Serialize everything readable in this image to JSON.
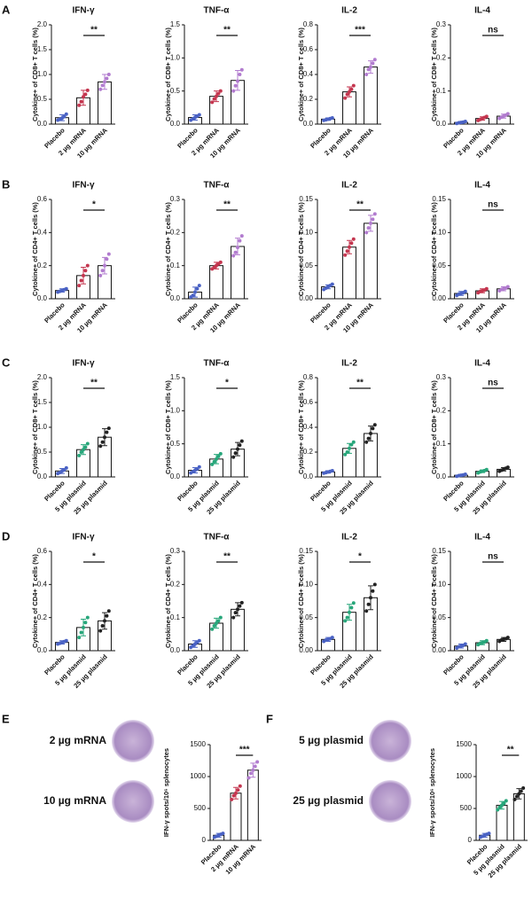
{
  "panel_labels": [
    "A",
    "B",
    "C",
    "D",
    "E",
    "F"
  ],
  "well_labels": [
    [
      "2 µg mRNA",
      "10 µg mRNA"
    ],
    [
      "5 µg plasmid",
      "25 µg plasmid"
    ]
  ],
  "chart_data": [
    {
      "type": "bar",
      "title": "IFN-γ",
      "y_label": "Cytokine+ of CD8+ T cells (%)",
      "categories": [
        "Placebo",
        "2 µg mRNA",
        "10 µg mRNA"
      ],
      "colors": [
        "#4a62c4",
        "#c4364f",
        "#b27ccf"
      ],
      "values": [
        0.13,
        0.53,
        0.85
      ],
      "errors": [
        0.06,
        0.15,
        0.15
      ],
      "points": [
        [
          0.08,
          0.1,
          0.12,
          0.15,
          0.2
        ],
        [
          0.38,
          0.45,
          0.55,
          0.6,
          0.68
        ],
        [
          0.7,
          0.78,
          0.85,
          0.92,
          1.0
        ]
      ],
      "ylim": [
        0,
        2
      ],
      "yticks": [
        {
          "value": 0,
          "label": "0.0"
        },
        0.5,
        {
          "value": 1,
          "label": "1.0"
        },
        1.5,
        {
          "value": 2,
          "label": "2.0"
        }
      ],
      "significance": "**"
    },
    {
      "type": "bar",
      "title": "TNF-α",
      "y_label": "Cytokine+ of CD8+ T cells (%)",
      "categories": [
        "Placebo",
        "2 µg mRNA",
        "10 µg mRNA"
      ],
      "colors": [
        "#4a62c4",
        "#c4364f",
        "#b27ccf"
      ],
      "values": [
        0.1,
        0.42,
        0.66
      ],
      "errors": [
        0.04,
        0.08,
        0.15
      ],
      "points": [
        [
          0.06,
          0.08,
          0.1,
          0.12,
          0.14
        ],
        [
          0.33,
          0.38,
          0.42,
          0.46,
          0.5
        ],
        [
          0.5,
          0.58,
          0.65,
          0.75,
          0.82
        ]
      ],
      "ylim": [
        0,
        1.5
      ],
      "yticks": [
        {
          "value": 0,
          "label": "0.0"
        },
        0.5,
        {
          "value": 1,
          "label": "1.0"
        },
        1.5
      ],
      "significance": "**"
    },
    {
      "type": "bar",
      "title": "IL-2",
      "y_label": "Cytokine+ of CD8+ T cells (%)",
      "categories": [
        "Placebo",
        "2 µg mRNA",
        "10 µg mRNA"
      ],
      "colors": [
        "#4a62c4",
        "#c4364f",
        "#b27ccf"
      ],
      "values": [
        0.04,
        0.26,
        0.46
      ],
      "errors": [
        0.01,
        0.04,
        0.05
      ],
      "points": [
        [
          0.03,
          0.035,
          0.04,
          0.045,
          0.05
        ],
        [
          0.21,
          0.24,
          0.26,
          0.28,
          0.31
        ],
        [
          0.4,
          0.44,
          0.46,
          0.49,
          0.52
        ]
      ],
      "ylim": [
        0,
        0.8
      ],
      "yticks": [
        {
          "value": 0,
          "label": "0.0"
        },
        0.2,
        0.4,
        0.6,
        0.8
      ],
      "significance": "***"
    },
    {
      "type": "bar",
      "title": "IL-4",
      "y_label": "Cytokine+ of CD8+ T cells (%)",
      "categories": [
        "Placebo",
        "2 µg mRNA",
        "10 µg mRNA"
      ],
      "colors": [
        "#4a62c4",
        "#c4364f",
        "#b27ccf"
      ],
      "values": [
        0.005,
        0.017,
        0.024
      ],
      "errors": [
        0.003,
        0.005,
        0.006
      ],
      "points": [
        [
          0.002,
          0.004,
          0.005,
          0.006,
          0.008
        ],
        [
          0.011,
          0.014,
          0.017,
          0.02,
          0.023
        ],
        [
          0.017,
          0.021,
          0.024,
          0.027,
          0.031
        ]
      ],
      "ylim": [
        0,
        0.3
      ],
      "yticks": [
        {
          "value": 0,
          "label": "0.0"
        },
        0.1,
        0.2,
        0.3
      ],
      "significance": "ns"
    },
    {
      "type": "bar",
      "title": "IFN-γ",
      "y_label": "Cytokine+ of CD4+ T cells (%)",
      "categories": [
        "Placebo",
        "2 µg mRNA",
        "10 µg mRNA"
      ],
      "colors": [
        "#4a62c4",
        "#c4364f",
        "#b27ccf"
      ],
      "values": [
        0.05,
        0.14,
        0.2
      ],
      "errors": [
        0.01,
        0.05,
        0.05
      ],
      "points": [
        [
          0.04,
          0.045,
          0.05,
          0.055,
          0.06
        ],
        [
          0.08,
          0.11,
          0.14,
          0.17,
          0.2
        ],
        [
          0.14,
          0.17,
          0.2,
          0.24,
          0.27
        ]
      ],
      "ylim": [
        0,
        0.6
      ],
      "yticks": [
        {
          "value": 0,
          "label": "0.0"
        },
        0.2,
        0.4,
        0.6
      ],
      "significance": "*"
    },
    {
      "type": "bar",
      "title": "TNF-α",
      "y_label": "Cytokine+ of CD4+ T cells (%)",
      "categories": [
        "Placebo",
        "2 µg mRNA",
        "10 µg mRNA"
      ],
      "colors": [
        "#4a62c4",
        "#c4364f",
        "#b27ccf"
      ],
      "values": [
        0.02,
        0.1,
        0.158
      ],
      "errors": [
        0.015,
        0.01,
        0.025
      ],
      "points": [
        [
          0.005,
          0.01,
          0.02,
          0.03,
          0.04
        ],
        [
          0.09,
          0.095,
          0.1,
          0.105,
          0.11
        ],
        [
          0.13,
          0.14,
          0.155,
          0.175,
          0.19
        ]
      ],
      "ylim": [
        0,
        0.3
      ],
      "yticks": [
        {
          "value": 0,
          "label": "0.0"
        },
        0.1,
        0.2,
        0.3
      ],
      "significance": "**"
    },
    {
      "type": "bar",
      "title": "IL-2",
      "y_label": "Cytokine+ of CD4+ T cells (%)",
      "categories": [
        "Placebo",
        "2 µg mRNA",
        "10 µg mRNA"
      ],
      "colors": [
        "#4a62c4",
        "#c4364f",
        "#b27ccf"
      ],
      "values": [
        0.018,
        0.078,
        0.114
      ],
      "errors": [
        0.003,
        0.01,
        0.012
      ],
      "points": [
        [
          0.014,
          0.016,
          0.018,
          0.02,
          0.022
        ],
        [
          0.066,
          0.072,
          0.078,
          0.084,
          0.09
        ],
        [
          0.1,
          0.107,
          0.114,
          0.12,
          0.128
        ]
      ],
      "ylim": [
        0,
        0.15
      ],
      "yticks": [
        {
          "value": 0,
          "label": "0.00"
        },
        0.05,
        {
          "value": 0.1,
          "label": "0.10"
        },
        0.15
      ],
      "significance": "**"
    },
    {
      "type": "bar",
      "title": "IL-4",
      "y_label": "Cytokine+ of CD4+ T cells (%)",
      "categories": [
        "Placebo",
        "2 µg mRNA",
        "10 µg mRNA"
      ],
      "colors": [
        "#4a62c4",
        "#c4364f",
        "#b27ccf"
      ],
      "values": [
        0.008,
        0.012,
        0.015
      ],
      "errors": [
        0.003,
        0.003,
        0.003
      ],
      "points": [
        [
          0.005,
          0.007,
          0.008,
          0.009,
          0.011
        ],
        [
          0.009,
          0.011,
          0.012,
          0.013,
          0.015
        ],
        [
          0.012,
          0.014,
          0.015,
          0.016,
          0.018
        ]
      ],
      "ylim": [
        0,
        0.15
      ],
      "yticks": [
        {
          "value": 0,
          "label": "0.00"
        },
        0.05,
        {
          "value": 0.1,
          "label": "0.10"
        },
        0.15
      ],
      "significance": "ns"
    },
    {
      "type": "bar",
      "title": "IFN-γ",
      "y_label": "Cytokine+ of CD8+ T cells (%)",
      "categories": [
        "Placebo",
        "5 µg plasmid",
        "25 µg plasmid"
      ],
      "colors": [
        "#4a62c4",
        "#27a67a",
        "#222222"
      ],
      "values": [
        0.12,
        0.55,
        0.8
      ],
      "errors": [
        0.05,
        0.1,
        0.17
      ],
      "points": [
        [
          0.07,
          0.09,
          0.12,
          0.14,
          0.18
        ],
        [
          0.43,
          0.5,
          0.55,
          0.6,
          0.67
        ],
        [
          0.62,
          0.7,
          0.8,
          0.9,
          0.98
        ]
      ],
      "ylim": [
        0,
        2
      ],
      "yticks": [
        {
          "value": 0,
          "label": "0.0"
        },
        0.5,
        {
          "value": 1,
          "label": "1.0"
        },
        1.5,
        {
          "value": 2,
          "label": "2.0"
        }
      ],
      "significance": "**"
    },
    {
      "type": "bar",
      "title": "TNF-α",
      "y_label": "Cytokine+ of CD8+ T cells (%)",
      "categories": [
        "Placebo",
        "5 µg plasmid",
        "25 µg plasmid"
      ],
      "colors": [
        "#4a62c4",
        "#27a67a",
        "#222222"
      ],
      "values": [
        0.1,
        0.27,
        0.42
      ],
      "errors": [
        0.04,
        0.07,
        0.1
      ],
      "points": [
        [
          0.06,
          0.08,
          0.1,
          0.12,
          0.15
        ],
        [
          0.19,
          0.23,
          0.27,
          0.31,
          0.35
        ],
        [
          0.3,
          0.36,
          0.42,
          0.48,
          0.54
        ]
      ],
      "ylim": [
        0,
        1.5
      ],
      "yticks": [
        {
          "value": 0,
          "label": "0.0"
        },
        0.5,
        {
          "value": 1,
          "label": "1.0"
        },
        1.5
      ],
      "significance": "*"
    },
    {
      "type": "bar",
      "title": "IL-2",
      "y_label": "Cytokine+ of CD8+ T cells (%)",
      "categories": [
        "Placebo",
        "5 µg plasmid",
        "25 µg plasmid"
      ],
      "colors": [
        "#4a62c4",
        "#27a67a",
        "#222222"
      ],
      "values": [
        0.04,
        0.23,
        0.35
      ],
      "errors": [
        0.01,
        0.04,
        0.06
      ],
      "points": [
        [
          0.03,
          0.035,
          0.04,
          0.045,
          0.05
        ],
        [
          0.18,
          0.2,
          0.23,
          0.26,
          0.28
        ],
        [
          0.28,
          0.31,
          0.35,
          0.39,
          0.42
        ]
      ],
      "ylim": [
        0,
        0.8
      ],
      "yticks": [
        {
          "value": 0,
          "label": "0.0"
        },
        0.2,
        0.4,
        0.6,
        0.8
      ],
      "significance": "**"
    },
    {
      "type": "bar",
      "title": "IL-4",
      "y_label": "Cytokine+ of CD8+ T cells (%)",
      "categories": [
        "Placebo",
        "5 µg plasmid",
        "25 µg plasmid"
      ],
      "colors": [
        "#4a62c4",
        "#27a67a",
        "#222222"
      ],
      "values": [
        0.005,
        0.017,
        0.023
      ],
      "errors": [
        0.003,
        0.004,
        0.005
      ],
      "points": [
        [
          0.002,
          0.004,
          0.005,
          0.006,
          0.008
        ],
        [
          0.012,
          0.015,
          0.017,
          0.019,
          0.022
        ],
        [
          0.017,
          0.02,
          0.023,
          0.026,
          0.029
        ]
      ],
      "ylim": [
        0,
        0.3
      ],
      "yticks": [
        {
          "value": 0,
          "label": "0.0"
        },
        0.1,
        0.2,
        0.3
      ],
      "significance": "ns"
    },
    {
      "type": "bar",
      "title": "IFN-γ",
      "y_label": "Cytokine+ of CD4+ T cells (%)",
      "categories": [
        "Placebo",
        "5 µg plasmid",
        "25 µg plasmid"
      ],
      "colors": [
        "#4a62c4",
        "#27a67a",
        "#222222"
      ],
      "values": [
        0.05,
        0.14,
        0.18
      ],
      "errors": [
        0.01,
        0.05,
        0.05
      ],
      "points": [
        [
          0.04,
          0.045,
          0.05,
          0.055,
          0.06
        ],
        [
          0.08,
          0.11,
          0.14,
          0.17,
          0.2
        ],
        [
          0.12,
          0.15,
          0.18,
          0.21,
          0.24
        ]
      ],
      "ylim": [
        0,
        0.6
      ],
      "yticks": [
        {
          "value": 0,
          "label": "0.0"
        },
        0.2,
        0.4,
        0.6
      ],
      "significance": "*"
    },
    {
      "type": "bar",
      "title": "TNF-α",
      "y_label": "Cytokine+ of CD4+ T cells (%)",
      "categories": [
        "Placebo",
        "5 µg plasmid",
        "25 µg plasmid"
      ],
      "colors": [
        "#4a62c4",
        "#27a67a",
        "#222222"
      ],
      "values": [
        0.02,
        0.083,
        0.125
      ],
      "errors": [
        0.01,
        0.015,
        0.02
      ],
      "points": [
        [
          0.01,
          0.015,
          0.02,
          0.025,
          0.03
        ],
        [
          0.065,
          0.075,
          0.083,
          0.09,
          0.1
        ],
        [
          0.1,
          0.115,
          0.125,
          0.135,
          0.145
        ]
      ],
      "ylim": [
        0,
        0.3
      ],
      "yticks": [
        {
          "value": 0,
          "label": "0.0"
        },
        0.1,
        0.2,
        0.3
      ],
      "significance": "**"
    },
    {
      "type": "bar",
      "title": "IL-2",
      "y_label": "Cytokine+ of CD4+ T cells (%)",
      "categories": [
        "Placebo",
        "5 µg plasmid",
        "25 µg plasmid"
      ],
      "colors": [
        "#4a62c4",
        "#27a67a",
        "#222222"
      ],
      "values": [
        0.017,
        0.058,
        0.08
      ],
      "errors": [
        0.003,
        0.012,
        0.018
      ],
      "points": [
        [
          0.014,
          0.016,
          0.017,
          0.018,
          0.02
        ],
        [
          0.045,
          0.05,
          0.058,
          0.065,
          0.072
        ],
        [
          0.06,
          0.07,
          0.08,
          0.09,
          0.1
        ]
      ],
      "ylim": [
        0,
        0.15
      ],
      "yticks": [
        {
          "value": 0,
          "label": "0.00"
        },
        0.05,
        {
          "value": 0.1,
          "label": "0.10"
        },
        0.15
      ],
      "significance": "*"
    },
    {
      "type": "bar",
      "title": "IL-4",
      "y_label": "Cytokine+ of CD4+ T cells (%)",
      "categories": [
        "Placebo",
        "5 µg plasmid",
        "25 µg plasmid"
      ],
      "colors": [
        "#4a62c4",
        "#27a67a",
        "#222222"
      ],
      "values": [
        0.007,
        0.012,
        0.017
      ],
      "errors": [
        0.003,
        0.003,
        0.003
      ],
      "points": [
        [
          0.004,
          0.006,
          0.007,
          0.008,
          0.01
        ],
        [
          0.009,
          0.011,
          0.012,
          0.013,
          0.015
        ],
        [
          0.014,
          0.016,
          0.017,
          0.018,
          0.02
        ]
      ],
      "ylim": [
        0,
        0.15
      ],
      "yticks": [
        {
          "value": 0,
          "label": "0.00"
        },
        0.05,
        {
          "value": 0.1,
          "label": "0.10"
        },
        0.15
      ],
      "significance": "ns"
    },
    {
      "type": "bar",
      "y_label": "IFN-γ spots/10⁶ splenocytes",
      "categories": [
        "Placebo",
        "2 µg mRNA",
        "10 µg mRNA"
      ],
      "colors": [
        "#4a62c4",
        "#c4364f",
        "#b27ccf"
      ],
      "values": [
        80,
        740,
        1100
      ],
      "errors": [
        30,
        90,
        110
      ],
      "points": [
        [
          50,
          65,
          80,
          95,
          110
        ],
        [
          640,
          700,
          740,
          790,
          850
        ],
        [
          980,
          1050,
          1100,
          1160,
          1230
        ]
      ],
      "ylim": [
        0,
        1500
      ],
      "yticks": [
        0,
        500,
        1000,
        1500
      ],
      "significance": "***"
    },
    {
      "type": "bar",
      "y_label": "IFN-γ spots/10⁶ splenocytes",
      "categories": [
        "Placebo",
        "5 µg plasmid",
        "25 µg plasmid"
      ],
      "colors": [
        "#4a62c4",
        "#27a67a",
        "#222222"
      ],
      "values": [
        80,
        550,
        730
      ],
      "errors": [
        30,
        60,
        80
      ],
      "points": [
        [
          50,
          65,
          80,
          95,
          110
        ],
        [
          480,
          520,
          550,
          580,
          620
        ],
        [
          640,
          690,
          730,
          770,
          820
        ]
      ],
      "ylim": [
        0,
        1500
      ],
      "yticks": [
        0,
        500,
        1000,
        1500
      ],
      "significance": "**"
    }
  ]
}
